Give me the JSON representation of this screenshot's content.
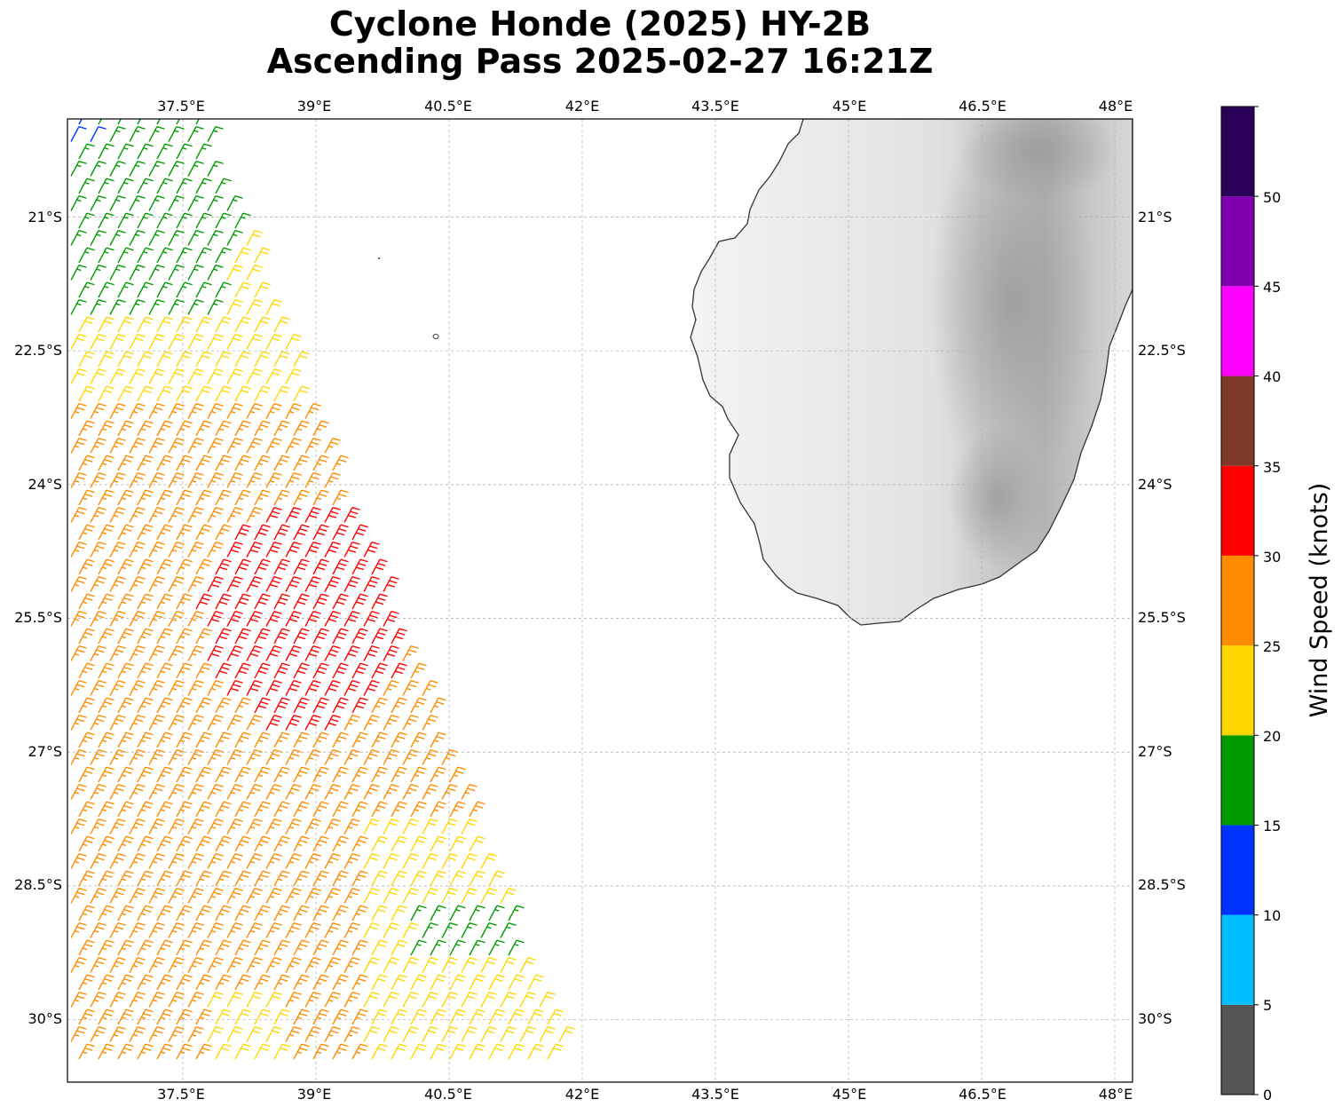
{
  "title_line1": "Cyclone Honde (2025) HY-2B",
  "title_line2": "Ascending Pass 2025-02-27 16:21Z",
  "colorbar": {
    "label": "Wind Speed (knots)",
    "ticks": [
      "0",
      "5",
      "10",
      "15",
      "20",
      "25",
      "30",
      "35",
      "40",
      "45",
      "50"
    ],
    "bins": [
      {
        "min": 0,
        "max": 5,
        "color": "#555555"
      },
      {
        "min": 5,
        "max": 10,
        "color": "#00bfff"
      },
      {
        "min": 10,
        "max": 15,
        "color": "#0033ff"
      },
      {
        "min": 15,
        "max": 20,
        "color": "#009900"
      },
      {
        "min": 20,
        "max": 25,
        "color": "#ffd700"
      },
      {
        "min": 25,
        "max": 30,
        "color": "#ff8c00"
      },
      {
        "min": 30,
        "max": 35,
        "color": "#ff0000"
      },
      {
        "min": 35,
        "max": 40,
        "color": "#7f3a29"
      },
      {
        "min": 40,
        "max": 45,
        "color": "#ff00ff"
      },
      {
        "min": 45,
        "max": 50,
        "color": "#8000b0"
      },
      {
        "min": 50,
        "max": 55,
        "color": "#2a0058"
      }
    ]
  },
  "map": {
    "lon_range": [
      36.2,
      48.2
    ],
    "lat_range": [
      -30.7,
      -19.9
    ],
    "lon_ticks": [
      "37.5°E",
      "39°E",
      "40.5°E",
      "42°E",
      "43.5°E",
      "45°E",
      "46.5°E",
      "48°E"
    ],
    "lat_ticks": [
      "21°S",
      "22.5°S",
      "24°S",
      "25.5°S",
      "27°S",
      "28.5°S",
      "30°S"
    ],
    "gridlines": true,
    "coastline_color": "#333333",
    "terrain": "grayscale elevation over Madagascar"
  },
  "swath": {
    "description": "HY-2B scatterometer wind barbs, colored by speed (knots)"
  }
}
